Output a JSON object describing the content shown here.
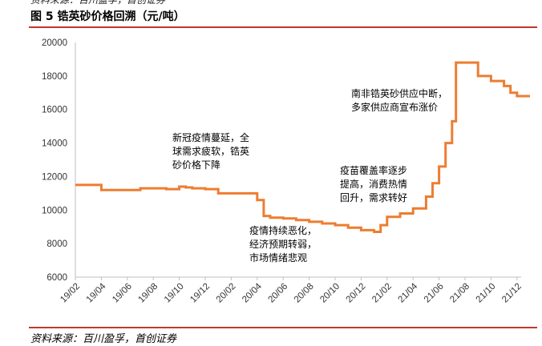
{
  "header": {
    "top_cut_text": "资料来源：百川盈孚，首创证券",
    "figure_title": "图 5  锆英砂价格回溯（元/吨）"
  },
  "footer": {
    "source": "资料来源：百川盈孚，首创证券"
  },
  "colors": {
    "line": "#ed7d31",
    "rule": "#c0392b",
    "axis": "#bfbfbf"
  },
  "chart_data": {
    "type": "line",
    "title": "图 5  锆英砂价格回溯（元/吨）",
    "xlabel": "",
    "ylabel": "",
    "ylim": [
      6000,
      20000
    ],
    "yticks": [
      6000,
      8000,
      10000,
      12000,
      14000,
      16000,
      18000,
      20000
    ],
    "xticks": [
      "19/02",
      "19/04",
      "19/06",
      "19/08",
      "19/10",
      "19/12",
      "20/02",
      "20/04",
      "20/06",
      "20/08",
      "20/10",
      "20/12",
      "21/02",
      "21/04",
      "21/06",
      "21/08",
      "21/10",
      "21/12"
    ],
    "grid": false,
    "legend": "none",
    "series": [
      {
        "values": [
          [
            "19/02",
            11500
          ],
          [
            "19/02.5",
            11500
          ],
          [
            "19/03",
            11500
          ],
          [
            "19/03.5",
            11500
          ],
          [
            "19/04",
            11200
          ],
          [
            "19/05",
            11200
          ],
          [
            "19/06",
            11200
          ],
          [
            "19/07",
            11300
          ],
          [
            "19/08",
            11300
          ],
          [
            "19/09",
            11250
          ],
          [
            "19/10",
            11400
          ],
          [
            "19/10.5",
            11350
          ],
          [
            "19/11",
            11300
          ],
          [
            "19/12",
            11250
          ],
          [
            "20/01",
            11000
          ],
          [
            "20/02",
            11000
          ],
          [
            "20/03",
            11000
          ],
          [
            "20/04",
            10600
          ],
          [
            "20/04.5",
            9650
          ],
          [
            "20/05",
            9550
          ],
          [
            "20/06",
            9500
          ],
          [
            "20/07",
            9400
          ],
          [
            "20/08",
            9300
          ],
          [
            "20/09",
            9200
          ],
          [
            "20/10",
            9100
          ],
          [
            "20/11",
            8950
          ],
          [
            "20/12",
            8800
          ],
          [
            "21/01",
            8700
          ],
          [
            "21/01.5",
            9100
          ],
          [
            "21/02",
            9600
          ],
          [
            "21/03",
            9800
          ],
          [
            "21/04",
            10100
          ],
          [
            "21/05",
            10800
          ],
          [
            "21/05.5",
            11600
          ],
          [
            "21/06",
            12600
          ],
          [
            "21/06.5",
            14000
          ],
          [
            "21/07",
            15300
          ],
          [
            "21/07.3",
            18800
          ],
          [
            "21/08",
            18800
          ],
          [
            "21/09",
            18000
          ],
          [
            "21/10",
            17700
          ],
          [
            "21/11",
            17400
          ],
          [
            "21/11.5",
            17000
          ],
          [
            "21/12",
            16800
          ],
          [
            "22/01",
            16800
          ]
        ]
      }
    ],
    "annotations": [
      {
        "lines": [
          "新冠疫情蔓延，全",
          "球需求疲软，锆英",
          "砂价格下降"
        ]
      },
      {
        "lines": [
          "疫情持续恶化，",
          "经济预期转弱，",
          "市场情绪悲观"
        ]
      },
      {
        "lines": [
          "疫苗覆盖率逐步",
          "提高，消费热情",
          "回升，需求转好"
        ]
      },
      {
        "lines": [
          "南非锆英砂供应中断，",
          "多家供应商宣布涨价"
        ]
      }
    ]
  }
}
